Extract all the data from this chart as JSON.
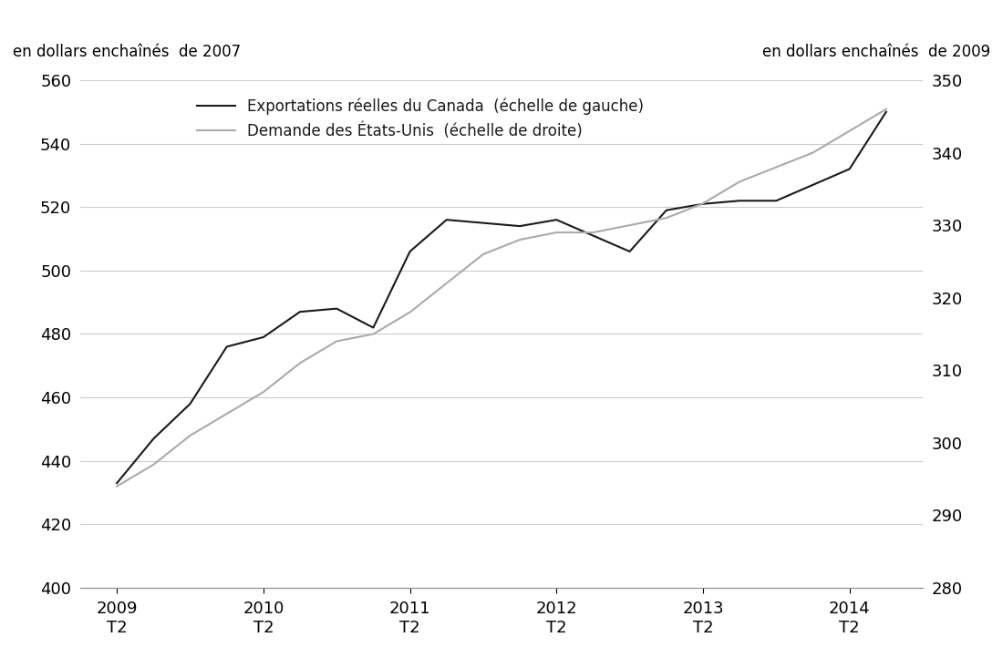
{
  "ylabel_left": "en dollars enchaînés  de 2007",
  "ylabel_right": "en dollars enchaînés  de 2009",
  "legend_line1": "Exportations réelles du Canada  (échelle de gauche)",
  "legend_line2": "Demande des États-Unis  (échelle de droite)",
  "ylim_left": [
    400,
    560
  ],
  "ylim_right": [
    280,
    350
  ],
  "yticks_left": [
    400,
    420,
    440,
    460,
    480,
    500,
    520,
    540,
    560
  ],
  "yticks_right": [
    280,
    290,
    300,
    310,
    320,
    330,
    340,
    350
  ],
  "xtick_years": [
    2009,
    2010,
    2011,
    2012,
    2013,
    2014
  ],
  "color_canada": "#1a1a1a",
  "color_us": "#aaaaaa",
  "line_width": 1.5,
  "canada_x": [
    2009.25,
    2009.5,
    2009.75,
    2010.0,
    2010.25,
    2010.5,
    2010.75,
    2011.0,
    2011.25,
    2011.5,
    2011.75,
    2012.0,
    2012.25,
    2012.5,
    2012.75,
    2013.0,
    2013.25,
    2013.5,
    2013.75,
    2014.0,
    2014.25,
    2014.5
  ],
  "canada_y": [
    433,
    447,
    458,
    476,
    479,
    487,
    488,
    482,
    506,
    516,
    515,
    514,
    516,
    511,
    506,
    519,
    521,
    522,
    522,
    527,
    532,
    550
  ],
  "us_x": [
    2009.25,
    2009.5,
    2009.75,
    2010.0,
    2010.25,
    2010.5,
    2010.75,
    2011.0,
    2011.25,
    2011.5,
    2011.75,
    2012.0,
    2012.25,
    2012.5,
    2012.75,
    2013.0,
    2013.25,
    2013.5,
    2013.75,
    2014.0,
    2014.25,
    2014.5
  ],
  "us_y": [
    294,
    297,
    301,
    304,
    307,
    311,
    314,
    315,
    318,
    322,
    326,
    328,
    329,
    329,
    330,
    331,
    333,
    336,
    338,
    340,
    343,
    346
  ],
  "background_color": "#ffffff",
  "grid_color": "#cccccc"
}
